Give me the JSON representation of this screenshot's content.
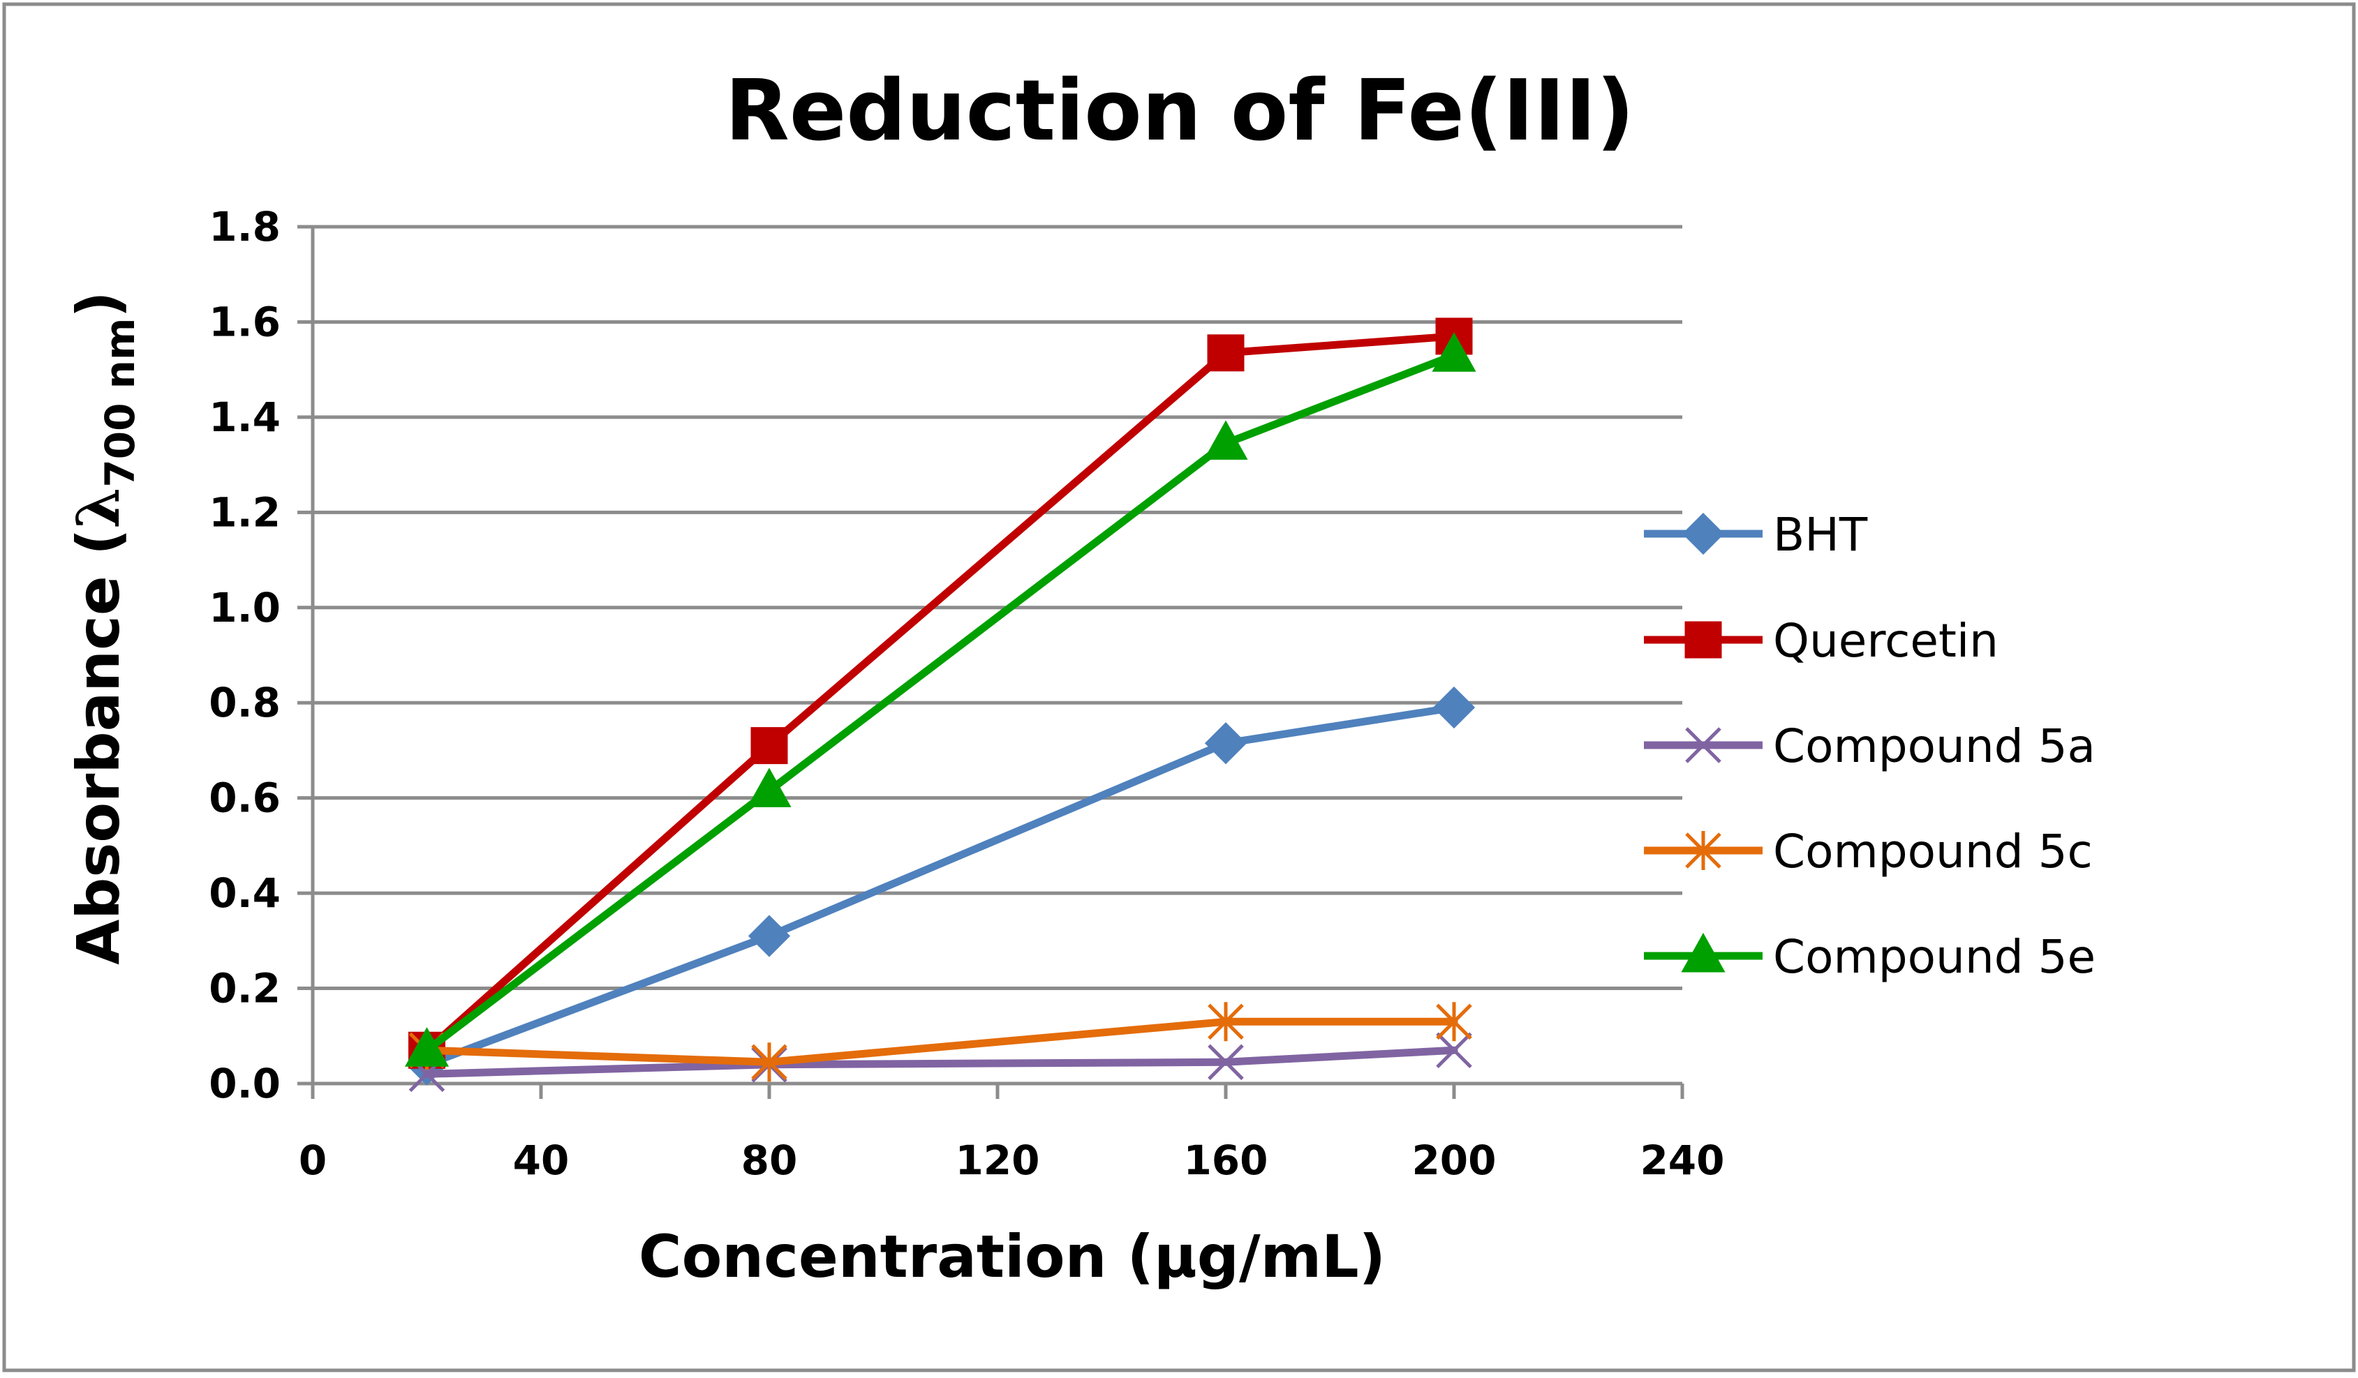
{
  "chart_data": {
    "type": "line",
    "title": "Reduction of Fe(III)",
    "xlabel": "Concentration (µg/mL)",
    "ylabel": "Absorbance (",
    "ylabel_symbol": "λ",
    "ylabel_subscript": "700 nm",
    "ylabel_close": ")",
    "xlim": [
      0,
      240
    ],
    "ylim": [
      0,
      1.8
    ],
    "xticks": [
      "0",
      "40",
      "80",
      "120",
      "160",
      "200",
      "240"
    ],
    "yticks": [
      "0.0",
      "0.2",
      "0.4",
      "0.6",
      "0.8",
      "1.0",
      "1.2",
      "1.4",
      "1.6",
      "1.8"
    ],
    "grid": true,
    "legend_position": "right",
    "x": [
      20,
      80,
      160,
      200
    ],
    "series": [
      {
        "name": "BHT",
        "values": [
          0.04,
          0.31,
          0.715,
          0.79
        ],
        "color": "#4f81bd",
        "marker": "diamond"
      },
      {
        "name": "Quercetin",
        "values": [
          0.07,
          0.71,
          1.535,
          1.57
        ],
        "color": "#c00000",
        "marker": "square"
      },
      {
        "name": "Compound 5a",
        "values": [
          0.02,
          0.04,
          0.045,
          0.07
        ],
        "color": "#8064a2",
        "marker": "x"
      },
      {
        "name": "Compound 5c",
        "values": [
          0.07,
          0.045,
          0.13,
          0.13
        ],
        "color": "#e46c0a",
        "marker": "asterisk"
      },
      {
        "name": "Compound 5e",
        "values": [
          0.07,
          0.615,
          1.345,
          1.53
        ],
        "color": "#00a000",
        "marker": "triangle"
      }
    ]
  }
}
